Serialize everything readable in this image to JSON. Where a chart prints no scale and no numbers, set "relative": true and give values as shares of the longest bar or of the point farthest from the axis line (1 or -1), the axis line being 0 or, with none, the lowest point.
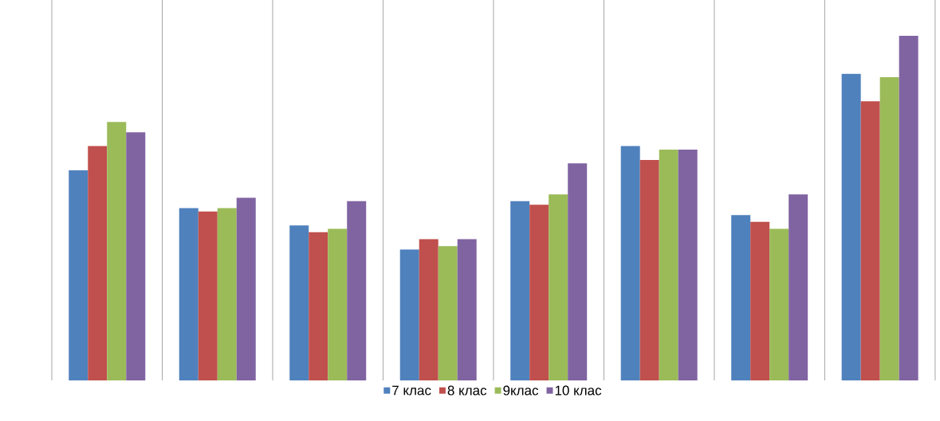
{
  "chart_data": {
    "type": "bar",
    "relative": true,
    "categories": [
      null,
      null,
      null,
      null,
      null,
      null,
      null,
      null
    ],
    "grid": "x",
    "legend": "bottom",
    "series": [
      {
        "name": "7 клас",
        "color": "#4f81bd",
        "values": [
          0.61,
          0.5,
          0.45,
          0.38,
          0.52,
          0.68,
          0.48,
          0.89
        ]
      },
      {
        "name": "8 клас",
        "color": "#c0504d",
        "values": [
          0.68,
          0.49,
          0.43,
          0.41,
          0.51,
          0.64,
          0.46,
          0.81
        ]
      },
      {
        "name": "9клас",
        "color": "#9bbb59",
        "values": [
          0.75,
          0.5,
          0.44,
          0.39,
          0.54,
          0.67,
          0.44,
          0.88
        ]
      },
      {
        "name": "10 клас",
        "color": "#8064a2",
        "values": [
          0.72,
          0.53,
          0.52,
          0.41,
          0.63,
          0.67,
          0.54,
          1
        ]
      }
    ]
  }
}
